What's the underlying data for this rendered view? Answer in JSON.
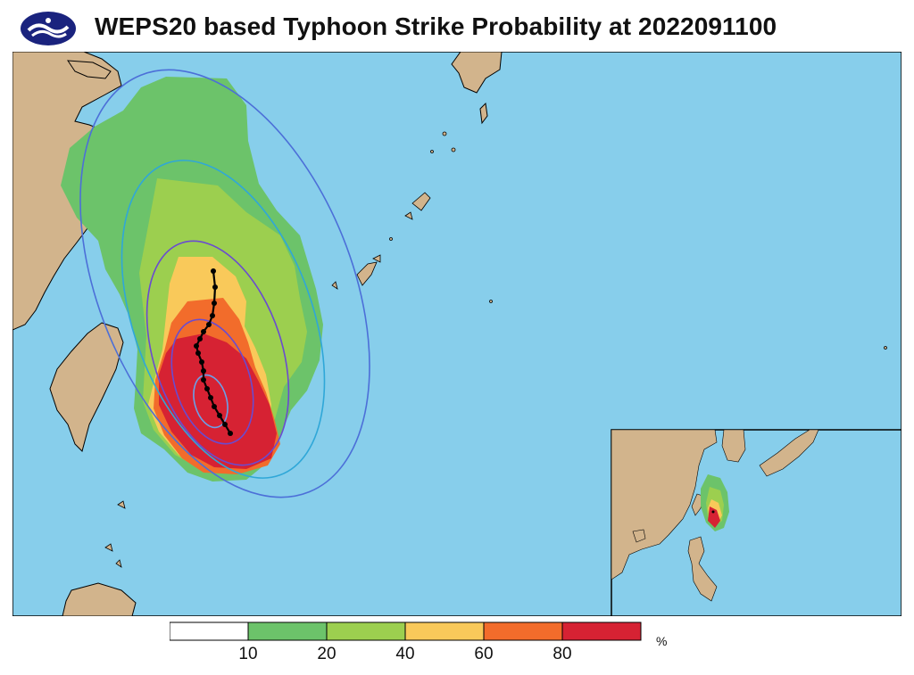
{
  "header": {
    "logo_icon": "agency-logo-icon",
    "title": "WEPS20 based Typhoon Strike Probability at 2022091100"
  },
  "map": {
    "ocean_color": "#87CEEB",
    "land_color": "#D2B48C",
    "inset_present": true
  },
  "legend": {
    "unit": "%",
    "bins": [
      {
        "range": "0-10",
        "color": "#FFFFFF"
      },
      {
        "range": "10-20",
        "color": "#6CC36A"
      },
      {
        "range": "20-40",
        "color": "#9CCF4F"
      },
      {
        "range": "40-60",
        "color": "#F9C95A"
      },
      {
        "range": "60-80",
        "color": "#F26C2B"
      },
      {
        "range": "80-100",
        "color": "#D62233"
      }
    ],
    "ticks": [
      "10",
      "20",
      "40",
      "60",
      "80"
    ]
  }
}
